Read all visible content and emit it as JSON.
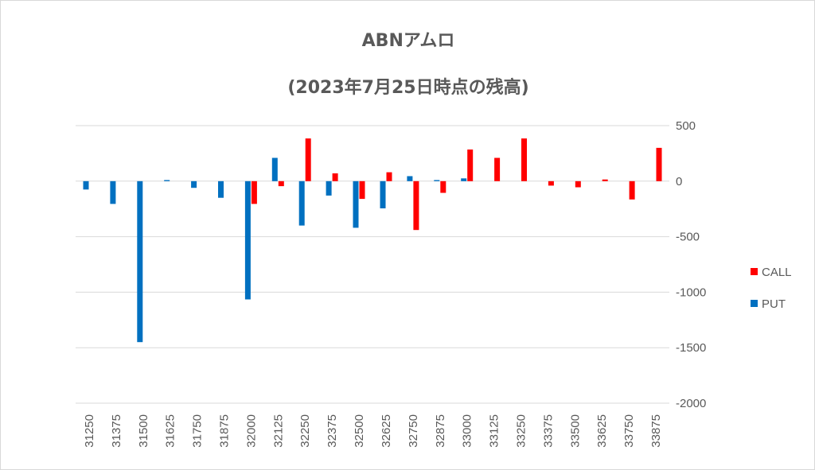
{
  "chart_data": {
    "type": "bar",
    "title": "ABNアムロ",
    "subtitle": "(2023年7月25日時点の残高)",
    "categories": [
      "31250",
      "31375",
      "31500",
      "31625",
      "31750",
      "31875",
      "32000",
      "32125",
      "32250",
      "32375",
      "32500",
      "32625",
      "32750",
      "32875",
      "33000",
      "33125",
      "33250",
      "33375",
      "33500",
      "33625",
      "33750",
      "33875"
    ],
    "series": [
      {
        "name": "PUT",
        "color": "#0070c0",
        "values": [
          -75,
          -205,
          -1450,
          10,
          -60,
          -150,
          -1065,
          210,
          -400,
          -130,
          -420,
          -245,
          45,
          10,
          25,
          0,
          0,
          0,
          0,
          0,
          0,
          0
        ]
      },
      {
        "name": "CALL",
        "color": "#ff0000",
        "values": [
          0,
          0,
          0,
          0,
          0,
          0,
          -205,
          -45,
          385,
          70,
          -160,
          80,
          -440,
          -105,
          285,
          210,
          385,
          -40,
          -55,
          15,
          -165,
          300
        ]
      }
    ],
    "ylim": [
      -2000,
      500
    ],
    "yticks": [
      500,
      0,
      -500,
      -1000,
      -1500,
      -2000
    ],
    "ytick_labels": [
      "500",
      "0",
      "-500",
      "-1000",
      "-1500",
      "-2000"
    ],
    "grid": true,
    "legend_position": "right",
    "legend_order": [
      "CALL",
      "PUT"
    ]
  }
}
